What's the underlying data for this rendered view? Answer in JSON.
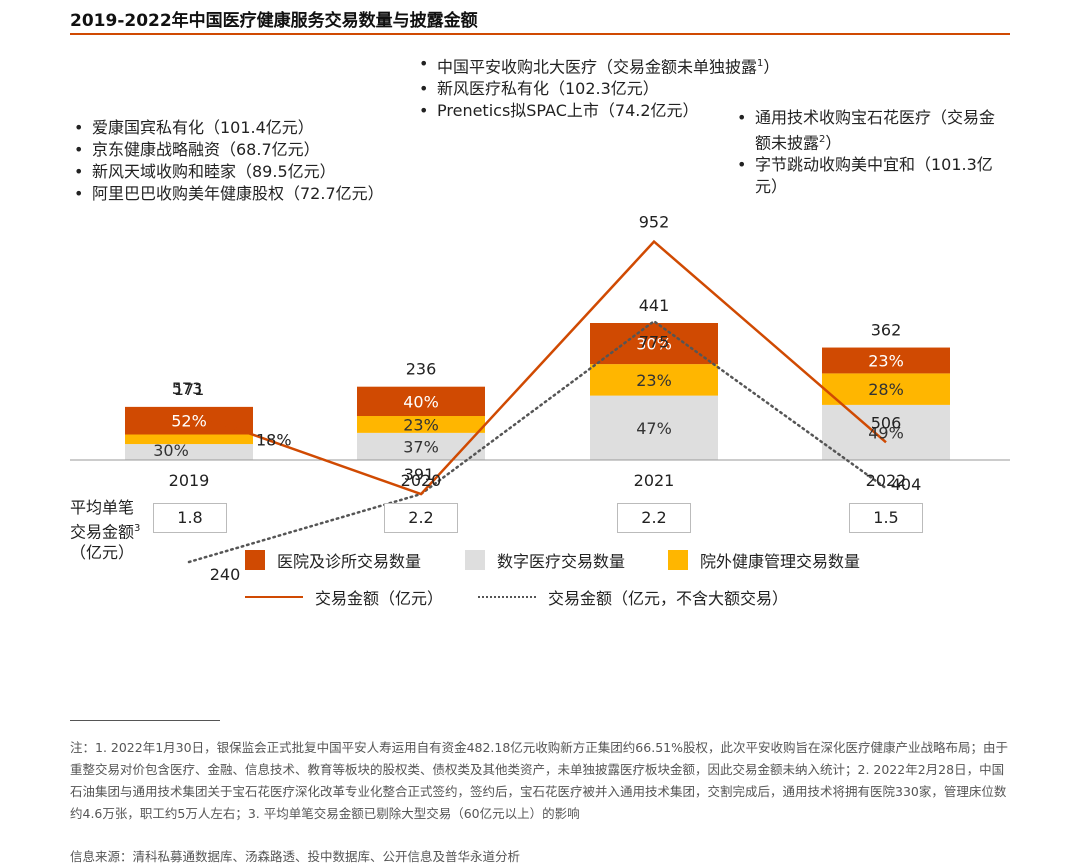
{
  "title": "2019-2022年中国医疗健康服务交易数量与披露金额",
  "colors": {
    "hospital": "#d04a02",
    "digital": "#dedede",
    "outpatient": "#ffb600",
    "line": "#d04a02",
    "dotted": "#555555",
    "rule": "#d04a02"
  },
  "chart_data": {
    "type": "bar",
    "title": "2019-2022年中国医疗健康服务交易数量与披露金额",
    "categories": [
      "2019",
      "2020",
      "2021",
      "2022"
    ],
    "stacked_bar": {
      "totals": [
        171,
        236,
        441,
        362
      ],
      "series": [
        {
          "name": "数字医疗交易数量",
          "percent": [
            30,
            37,
            47,
            49
          ],
          "labels": [
            "30%",
            "37%",
            "47%",
            "49%"
          ]
        },
        {
          "name": "院外健康管理交易数量",
          "percent": [
            18,
            23,
            23,
            28
          ],
          "labels": [
            "18%",
            "23%",
            "23%",
            "28%"
          ]
        },
        {
          "name": "医院及诊所交易数量",
          "percent": [
            52,
            40,
            30,
            23
          ],
          "labels": [
            "52%",
            "40%",
            "30%",
            "23%"
          ]
        }
      ]
    },
    "lines": [
      {
        "name": "交易金额（亿元）",
        "values": [
          573,
          391,
          952,
          506
        ],
        "labels": [
          "573",
          "391",
          "952",
          "506"
        ]
      },
      {
        "name": "交易金额（亿元，不含大额交易）",
        "values": [
          240,
          391,
          775,
          404
        ],
        "labels": [
          "240",
          "",
          "775",
          "404"
        ]
      }
    ],
    "avg_deal": {
      "label_lines": [
        "平均单笔",
        "交易金额",
        "（亿元）"
      ],
      "label_sup": "3",
      "values": [
        "1.8",
        "2.2",
        "2.2",
        "1.5"
      ]
    },
    "legend": [
      "医院及诊所交易数量",
      "数字医疗交易数量",
      "院外健康管理交易数量",
      "交易金额（亿元）",
      "交易金额（亿元，不含大额交易）"
    ]
  },
  "annotations": {
    "y2019": [
      "爱康国宾私有化（101.4亿元）",
      "京东健康战略融资（68.7亿元）",
      "新风天域收购和睦家（89.5亿元）",
      "阿里巴巴收购美年健康股权（72.7亿元）"
    ],
    "y2021": [
      {
        "text": "中国平安收购北大医疗（交易金额未单独披露",
        "sup": "1",
        "after": "）"
      },
      {
        "text": "新风医疗私有化（102.3亿元）",
        "sup": "",
        "after": ""
      },
      {
        "text": "Prenetics拟SPAC上市（74.2亿元）",
        "sup": "",
        "after": ""
      }
    ],
    "y2022": [
      {
        "text": "通用技术收购宝石花医疗（交易金额未披露",
        "sup": "2",
        "after": "）"
      },
      {
        "text": "字节跳动收购美中宜和（101.3亿元）",
        "sup": "",
        "after": ""
      }
    ]
  },
  "footnote": "注：1. 2022年1月30日，银保监会正式批复中国平安人寿运用自有资金482.18亿元收购新方正集团约66.51%股权，此次平安收购旨在深化医疗健康产业战略布局；由于重整交易对价包含医疗、金融、信息技术、教育等板块的股权类、债权类及其他类资产，未单独披露医疗板块金额，因此交易金额未纳入统计；2. 2022年2月28日，中国石油集团与通用技术集团关于宝石花医疗深化改革专业化整合正式签约，签约后，宝石花医疗被并入通用技术集团，交割完成后，通用技术将拥有医院330家，管理床位数约4.6万张，职工约5万人左右；3. 平均单笔交易金额已剔除大型交易（60亿元以上）的影响",
  "source": "信息来源：清科私募通数据库、汤森路透、投中数据库、公开信息及普华永道分析"
}
